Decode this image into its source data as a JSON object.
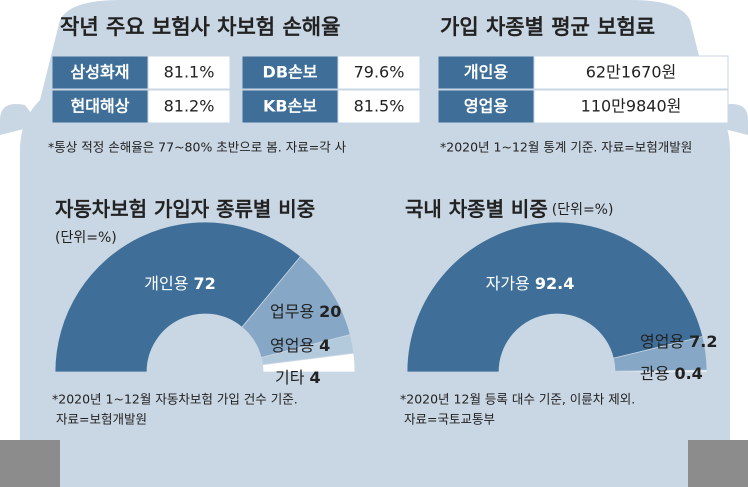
{
  "loss_ratio": {
    "title": "작년 주요 보험사 차보험 손해율",
    "tables": [
      [
        [
          "삼성화재",
          "81.1%"
        ],
        [
          "현대해상",
          "81.2%"
        ]
      ],
      [
        [
          "DB손보",
          "79.6%"
        ],
        [
          "KB손보",
          "81.5%"
        ]
      ]
    ],
    "note": "*통상 적정 손해율은 77~80% 초반으로 봄. 자료=각 사"
  },
  "premium": {
    "title": "가입 차종별 평균 보험료",
    "table": [
      [
        "개인용",
        "62만1670원"
      ],
      [
        "영업용",
        "110만9840원"
      ]
    ],
    "note": "*2020년 1~12월 통계 기준. 자료=보험개발원"
  },
  "chart_data": [
    {
      "type": "pie",
      "title": "자동차보험 가입자 종류별 비중",
      "subtitle": "(단위=%)",
      "categories": [
        "개인용",
        "업무용",
        "영업용",
        "기타"
      ],
      "values": [
        72,
        20,
        4,
        4
      ],
      "colors": [
        "#3f6f98",
        "#86a8c6",
        "#b3c9dc",
        "#ffffff"
      ],
      "notes": [
        "*2020년 1~12월 자동차보험 가입 건수 기준.",
        "자료=보험개발원"
      ]
    },
    {
      "type": "pie",
      "title": "국내 차종별 비중",
      "subtitle": "(단위=%)",
      "categories": [
        "자가용",
        "영업용",
        "관용"
      ],
      "values": [
        92.4,
        7.2,
        0.4
      ],
      "colors": [
        "#3f6f98",
        "#86a8c6",
        "#ffffff"
      ],
      "notes": [
        "*2020년 12월 등록 대수 기준, 이륜차 제외.",
        "자료=국토교통부"
      ]
    }
  ]
}
